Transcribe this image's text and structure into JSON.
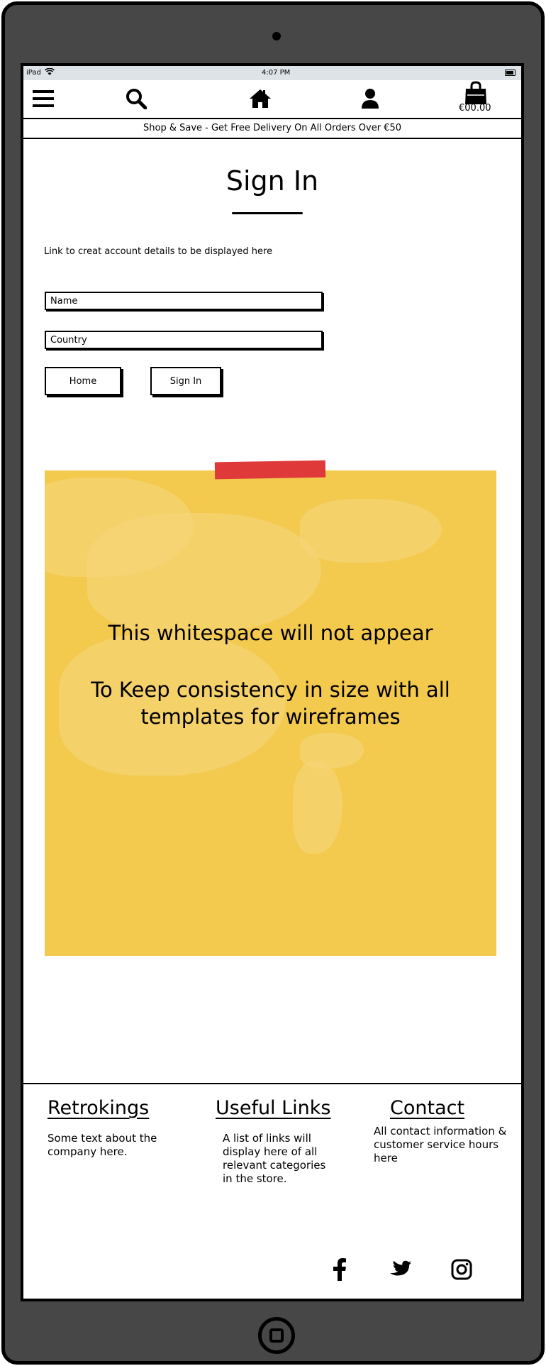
{
  "status_bar": {
    "carrier": "iPad",
    "time": "4:07 PM"
  },
  "nav": {
    "menu_icon": "hamburger-icon",
    "search_icon": "search-icon",
    "home_icon": "home-icon",
    "account_icon": "user-icon",
    "cart_icon": "shopping-bag-icon",
    "cart_total": "€00.00"
  },
  "banner": {
    "text": "Shop & Save - Get Free Delivery On All Orders Over €50"
  },
  "page": {
    "title": "Sign In",
    "info_text": "Link to creat account details to be displayed here"
  },
  "form": {
    "name_placeholder": "Name",
    "country_placeholder": "Country",
    "home_button": "Home",
    "signin_button": "Sign In"
  },
  "sticky_note": {
    "line1": "This whitespace will not appear",
    "line2": "To Keep consistency in size with all",
    "line3": "templates for wireframes"
  },
  "footer": {
    "about": {
      "title": "Retrokings",
      "lines": [
        "Some text about the",
        "company here."
      ]
    },
    "links": {
      "title": "Useful Links",
      "lines": [
        "A list of links will",
        "display here of all",
        "relevant categories",
        "in the store."
      ]
    },
    "contact": {
      "title": "Contact",
      "lines": [
        "All contact information &",
        "customer service hours",
        "here"
      ]
    }
  },
  "social": [
    "facebook-icon",
    "twitter-icon",
    "instagram-icon"
  ],
  "colors": {
    "device": "#474747",
    "note": "#f3c94e",
    "tape": "#e0393a",
    "statusbar": "#dde3e6"
  }
}
